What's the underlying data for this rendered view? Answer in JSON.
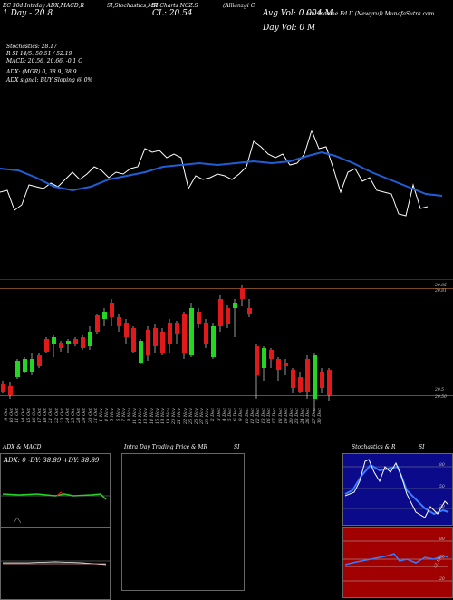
{
  "header": {
    "line1_left": "EC 30d Intrday ADX,MACD,R",
    "line1_mid": "SI,Stochastics,MR",
    "line1_mid2": "SI Charts NCZ.S",
    "line1_right": "(Allianzgi C",
    "line1_right2": "onv Income Fd II (Newyru)) MunafaSutra.com",
    "day_label": "1 Day - 20.8",
    "close_label": "CL: 20.54",
    "avg_vol": "Avg Vol: 0.004  M",
    "day_vol": "Day Vol: 0   M"
  },
  "indicators": {
    "stochastics": "Stochastics: 28.17",
    "rsi": "R          SI 14/5: 50.51 / 52.19",
    "macd": "MACD: 20.56,  20.66, -0.1 C",
    "adx": "ADX:                    (MGR) 0, 38.9, 38.9",
    "adx_signal": "ADX  signal:                   BUY Sloping @ 0%"
  },
  "price_chart": {
    "top_level": "20.85",
    "top_level2": "20.81",
    "bottom_level": "20.5",
    "bottom_level2": "20.50"
  },
  "dates": [
    "9 Oct",
    "10 Oct",
    "11 Oct",
    "14 Oct",
    "15 Oct",
    "16 Oct",
    "17 Oct",
    "18 Oct",
    "21 Oct",
    "22 Oct",
    "23 Oct",
    "24 Oct",
    "25 Oct",
    "28 Oct",
    "29 Oct",
    "30 Oct",
    "31 Oct",
    "1 Nov",
    "4 Nov",
    "5 Nov",
    "6 Nov",
    "7 Nov",
    "8 Nov",
    "11 Nov",
    "12 Nov",
    "13 Nov",
    "14 Nov",
    "15 Nov",
    "18 Nov",
    "19 Nov",
    "20 Nov",
    "21 Nov",
    "22 Nov",
    "25 Nov",
    "26 Nov",
    "27 Nov",
    "29 Nov",
    "2 Dec",
    "3 Dec",
    "4 Dec",
    "5 Dec",
    "6 Dec",
    "9 Dec",
    "10 Dec",
    "11 Dec",
    "12 Dec",
    "13 Dec",
    "16 Dec",
    "17 Dec",
    "18 Dec",
    "19 Dec",
    "20 Dec",
    "23 Dec",
    "24 Dec",
    "26 Dec",
    "27 Dec",
    "30 Dec"
  ],
  "panels": {
    "adx_title": "ADX  & MACD",
    "adx_values": "ADX: 0   -DY: 38.89  +DY: 38.89",
    "intra_title": "Intra  Day Trading Price  & MR",
    "intra_title2": "SI",
    "stoch_title": "Stochastics & R",
    "stoch_title2": "SI",
    "stoch_ticks": [
      "80",
      "50",
      "20"
    ],
    "rsi_ticks": [
      "80",
      "50",
      "20"
    ],
    "rsi_value": "52.19"
  },
  "colors": {
    "blue": "#1f5fd6",
    "green": "#22d622",
    "red": "#e01a1a",
    "panel_red": "#a00000",
    "navy": "#0a0a8a"
  }
}
